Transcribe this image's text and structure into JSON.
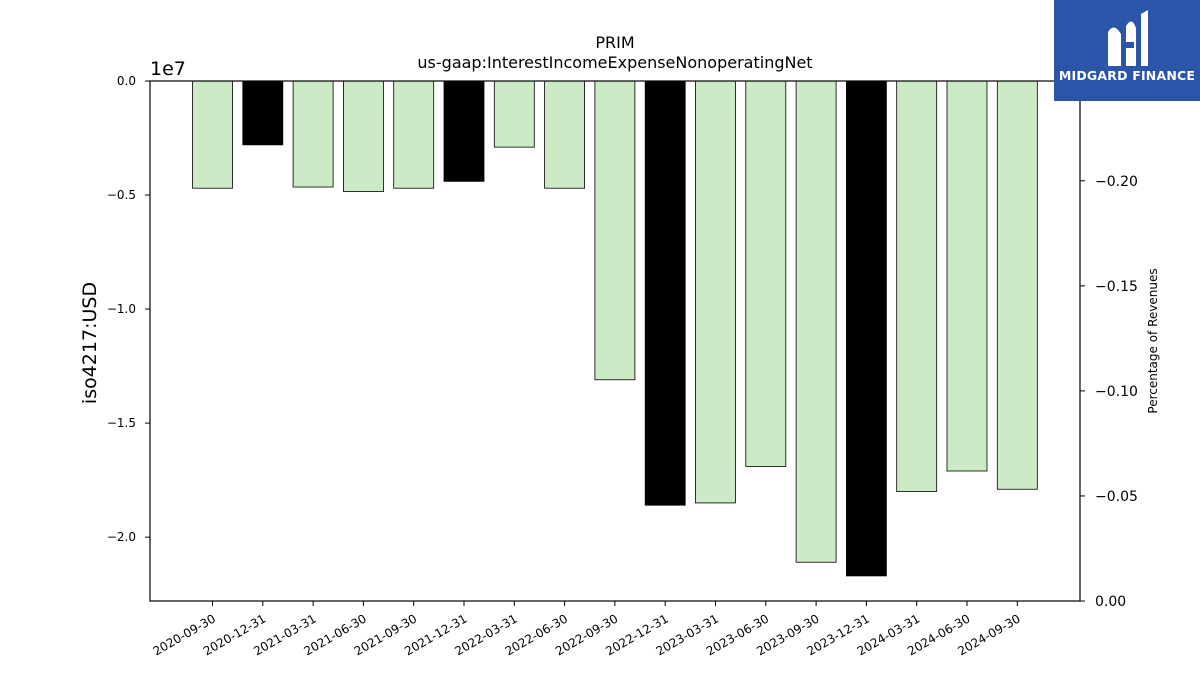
{
  "brand": {
    "name": "MIDGARD FINANCE",
    "icon": "midgard-logo-icon",
    "color": "#2a55a8"
  },
  "chart_data": {
    "type": "bar",
    "title": "PRIM",
    "subtitle": "us-gaap:InterestIncomeExpenseNonoperatingNet",
    "ylabel": "iso4217:USD",
    "y_offset_label": "1e7",
    "y2label": "Percentage of Revenues",
    "categories": [
      "2020-09-30",
      "2020-12-31",
      "2021-03-31",
      "2021-06-30",
      "2021-09-30",
      "2021-12-31",
      "2022-03-31",
      "2022-06-30",
      "2022-09-30",
      "2022-12-31",
      "2023-03-31",
      "2023-06-30",
      "2023-09-30",
      "2023-12-31",
      "2024-03-31",
      "2024-06-30",
      "2024-09-30"
    ],
    "values": [
      -4700000,
      -2800000,
      -4650000,
      -4850000,
      -4700000,
      -4400000,
      -2900000,
      -4700000,
      -13100000,
      -18600000,
      -18500000,
      -16900000,
      -21100000,
      -21700000,
      -18000000,
      -17100000,
      -17900000
    ],
    "bar_colors": [
      "#cdeac6",
      "#000000",
      "#cdeac6",
      "#cdeac6",
      "#cdeac6",
      "#000000",
      "#cdeac6",
      "#cdeac6",
      "#cdeac6",
      "#000000",
      "#cdeac6",
      "#cdeac6",
      "#cdeac6",
      "#000000",
      "#cdeac6",
      "#cdeac6",
      "#cdeac6"
    ],
    "ylim": [
      -22800000,
      0
    ],
    "yticks": [
      0,
      -5000000,
      -10000000,
      -15000000,
      -20000000
    ],
    "ytick_labels": [
      "0.0",
      "−0.5",
      "−1.0",
      "−1.5",
      "−2.0"
    ],
    "y2lim": [
      0,
      -0.2475
    ],
    "y2ticks": [
      0,
      -0.05,
      -0.1,
      -0.15,
      -0.2
    ],
    "y2tick_labels": [
      "0.00",
      "−0.05",
      "−0.10",
      "−0.15",
      "−0.20"
    ],
    "grid": false
  }
}
